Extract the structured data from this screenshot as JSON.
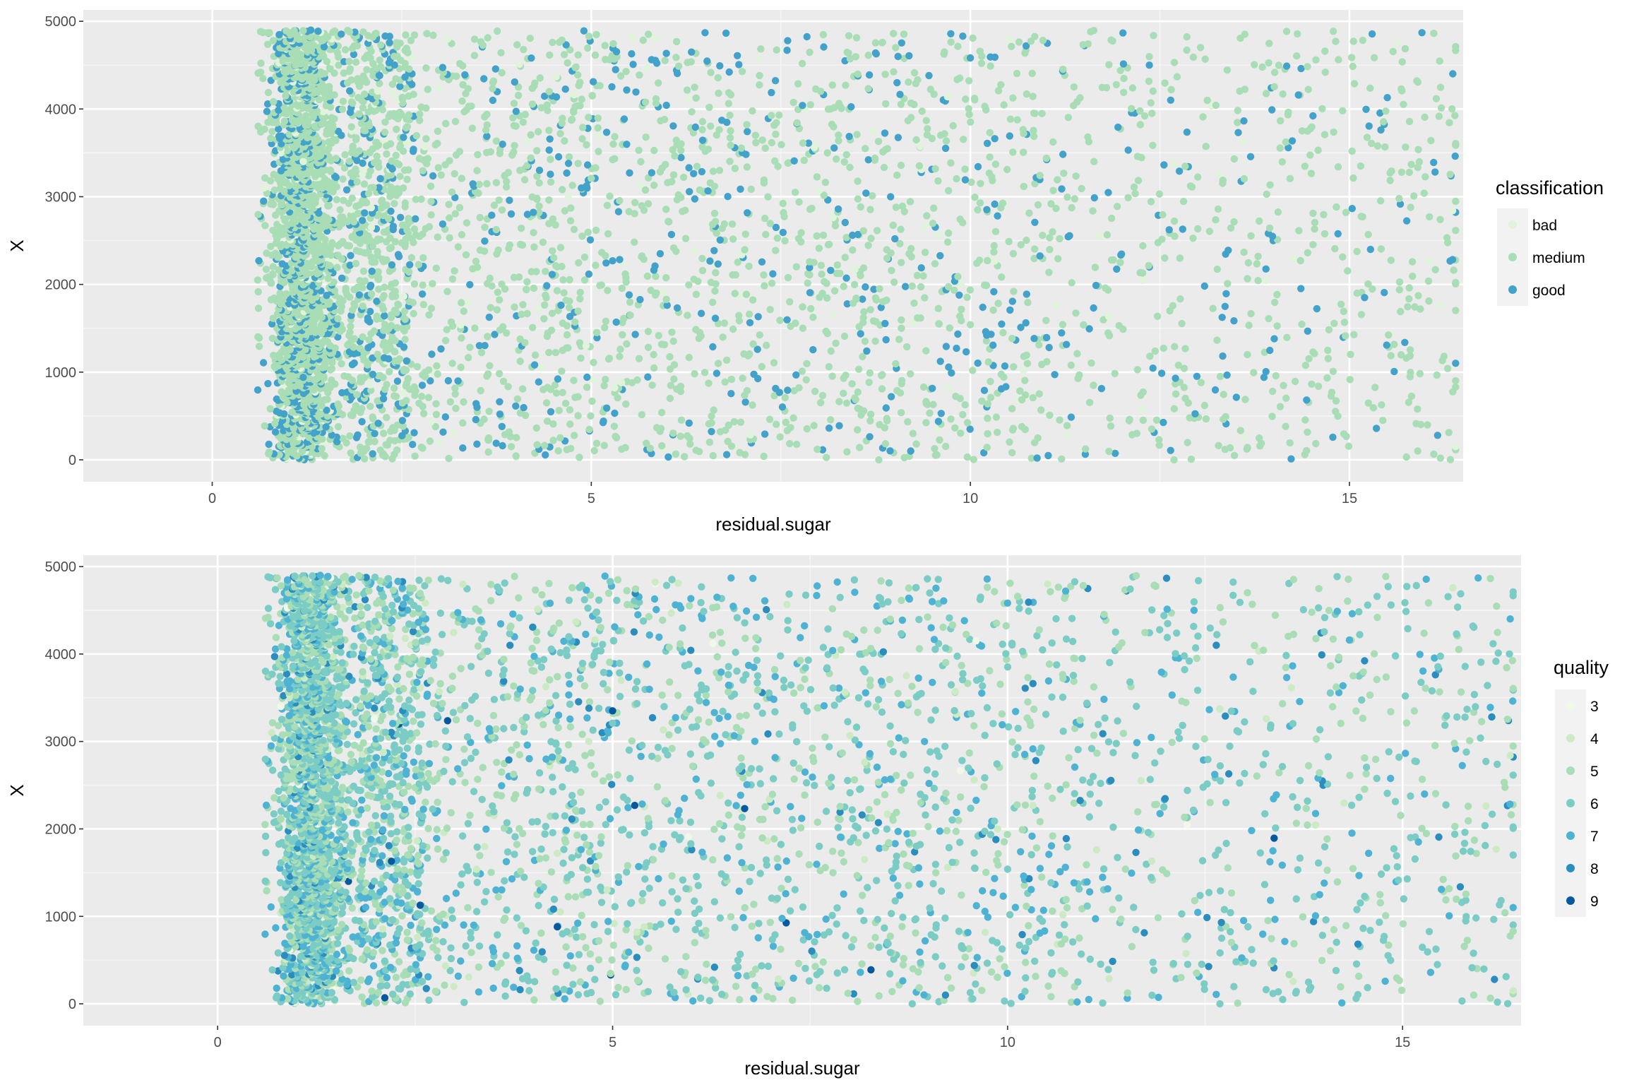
{
  "chart_data": [
    {
      "type": "scatter",
      "title": "",
      "xlabel": "residual.sugar",
      "ylabel": "X",
      "xlim": [
        -1.7,
        16.5
      ],
      "ylim": [
        -250,
        5130
      ],
      "x_ticks": [
        0,
        5,
        10,
        15
      ],
      "x_tick_labels": [
        "0",
        "5",
        "10",
        "15"
      ],
      "y_ticks": [
        0,
        1000,
        2000,
        3000,
        4000,
        5000
      ],
      "y_tick_labels": [
        "0",
        "1000",
        "2000",
        "3000",
        "4000",
        "5000"
      ],
      "grid": true,
      "background": "#ebebeb",
      "legend": {
        "title": "classification",
        "position": "right",
        "entries": [
          {
            "label": "bad",
            "color": "#e0f3db"
          },
          {
            "label": "medium",
            "color": "#a8ddb5"
          },
          {
            "label": "good",
            "color": "#43a2ca"
          }
        ]
      },
      "n_points": 4898,
      "point_distribution_note": "dense cluster at residual.sugar 0.9-2.2 across all X; sparse beyond 10",
      "series": [
        {
          "name": "bad",
          "points": [
            [
              1.2,
              3400
            ],
            [
              2.1,
              2650
            ],
            [
              4.3,
              1720
            ],
            [
              5.4,
              880
            ],
            [
              9.7,
              4140
            ]
          ]
        },
        {
          "name": "medium",
          "points": [
            [
              0.6,
              2050
            ],
            [
              1.1,
              4850
            ],
            [
              1.3,
              2400
            ],
            [
              2.4,
              4600
            ],
            [
              5.0,
              3210
            ],
            [
              7.3,
              2570
            ],
            [
              10.0,
              1540
            ],
            [
              12.1,
              460
            ],
            [
              15.9,
              100
            ],
            [
              16.4,
              830
            ]
          ]
        },
        {
          "name": "good",
          "points": [
            [
              1.3,
              4900
            ],
            [
              1.2,
              940
            ],
            [
              4.7,
              3380
            ],
            [
              5.5,
              1880
            ],
            [
              6.5,
              4870
            ],
            [
              9.9,
              4830
            ],
            [
              12.8,
              2630
            ],
            [
              15.2,
              1850
            ],
            [
              15.5,
              4130
            ]
          ]
        }
      ]
    },
    {
      "type": "scatter",
      "title": "",
      "xlabel": "residual.sugar",
      "ylabel": "X",
      "xlim": [
        -1.7,
        16.5
      ],
      "ylim": [
        -250,
        5130
      ],
      "x_ticks": [
        0,
        5,
        10,
        15
      ],
      "x_tick_labels": [
        "0",
        "5",
        "10",
        "15"
      ],
      "y_ticks": [
        0,
        1000,
        2000,
        3000,
        4000,
        5000
      ],
      "y_tick_labels": [
        "0",
        "1000",
        "2000",
        "3000",
        "4000",
        "5000"
      ],
      "grid": true,
      "background": "#ebebeb",
      "legend": {
        "title": "quality",
        "position": "right",
        "entries": [
          {
            "label": "3",
            "color": "#f0f9e8"
          },
          {
            "label": "4",
            "color": "#ccebc5"
          },
          {
            "label": "5",
            "color": "#a8ddb5"
          },
          {
            "label": "6",
            "color": "#7bccc4"
          },
          {
            "label": "7",
            "color": "#4eb3d3"
          },
          {
            "label": "8",
            "color": "#2b8cbe"
          },
          {
            "label": "9",
            "color": "#08589e"
          }
        ]
      },
      "n_points": 4898,
      "series": [
        {
          "name": "3",
          "points": [
            [
              0.8,
              3400
            ],
            [
              9.6,
              4150
            ]
          ]
        },
        {
          "name": "4",
          "points": [
            [
              1.2,
              2420
            ],
            [
              4.3,
              1720
            ],
            [
              5.4,
              880
            ]
          ]
        },
        {
          "name": "5",
          "points": [
            [
              0.6,
              2050
            ],
            [
              1.1,
              4850
            ],
            [
              7.3,
              2570
            ],
            [
              15.9,
              100
            ],
            [
              16.4,
              830
            ]
          ]
        },
        {
          "name": "6",
          "points": [
            [
              1.3,
              2400
            ],
            [
              5.0,
              3210
            ],
            [
              10.0,
              1540
            ],
            [
              12.1,
              460
            ]
          ]
        },
        {
          "name": "7",
          "points": [
            [
              1.3,
              4900
            ],
            [
              6.5,
              4870
            ],
            [
              15.2,
              1850
            ]
          ]
        },
        {
          "name": "8",
          "points": [
            [
              4.7,
              3380
            ],
            [
              12.8,
              2630
            ]
          ]
        },
        {
          "name": "9",
          "points": [
            [
              2.2,
              1630
            ],
            [
              4.3,
              880
            ],
            [
              5.0,
              3350
            ]
          ]
        }
      ]
    }
  ]
}
